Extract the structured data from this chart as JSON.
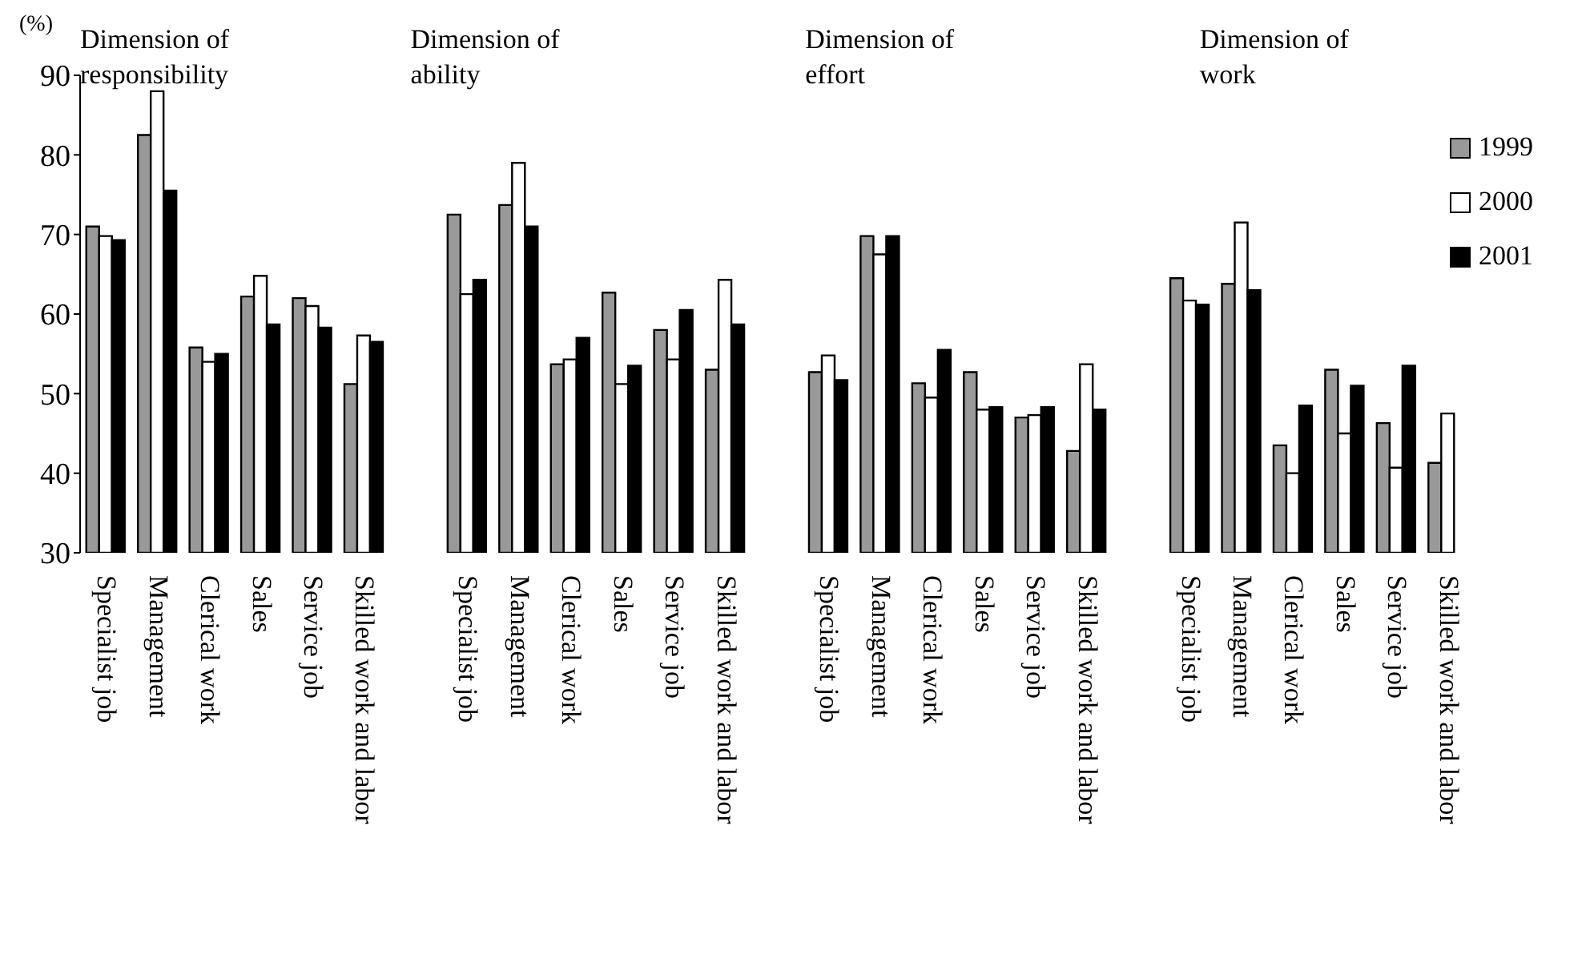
{
  "chart_data": {
    "type": "bar",
    "ylabel": "(%)",
    "categories": [
      "Specialist job",
      "Management",
      "Clerical work",
      "Sales",
      "Service job",
      "Skilled work and labor",
      null,
      "Specialist job",
      "Management",
      "Clerical work",
      "Sales",
      "Service job",
      "Skilled work and labor",
      null,
      "Specialist job",
      "Management",
      "Clerical work",
      "Sales",
      "Service job",
      "Skilled work and labor",
      null,
      "Specialist job",
      "Management",
      "Clerical work",
      "Sales",
      "Service job",
      "Skilled work and labor"
    ],
    "series": [
      {
        "name": "1999",
        "color": "#999999",
        "values": [
          71,
          82.5,
          55.8,
          62.2,
          62,
          51.2,
          null,
          72.5,
          73.7,
          53.7,
          62.7,
          58,
          53,
          null,
          52.7,
          69.8,
          51.3,
          52.7,
          47,
          42.8,
          null,
          64.5,
          63.8,
          43.5,
          53,
          46.3,
          41.3
        ]
      },
      {
        "name": "2000",
        "color": "#ffffff",
        "values": [
          69.8,
          88,
          54,
          64.8,
          61,
          57.3,
          null,
          62.5,
          79,
          54.3,
          51.2,
          54.3,
          64.3,
          null,
          54.8,
          67.5,
          49.5,
          48,
          47.3,
          53.7,
          null,
          61.7,
          71.5,
          40,
          45,
          40.7,
          47.5
        ]
      },
      {
        "name": "2001",
        "color": "#000000",
        "values": [
          69.3,
          75.5,
          55,
          58.7,
          58.3,
          56.5,
          null,
          64.3,
          71,
          57,
          53.5,
          60.5,
          58.7,
          null,
          51.7,
          69.8,
          55.5,
          48.3,
          48.3,
          48,
          null,
          61.2,
          63,
          48.5,
          51,
          53.5,
          null
        ]
      }
    ],
    "annotations": [
      "Dimension of responsibility",
      "Dimension of ability",
      "Dimension of effort",
      "Dimension of work"
    ],
    "ylim": [
      30,
      90
    ],
    "yticks": [
      30,
      40,
      50,
      60,
      70,
      80,
      90
    ],
    "grid": false,
    "legend": "top right"
  }
}
